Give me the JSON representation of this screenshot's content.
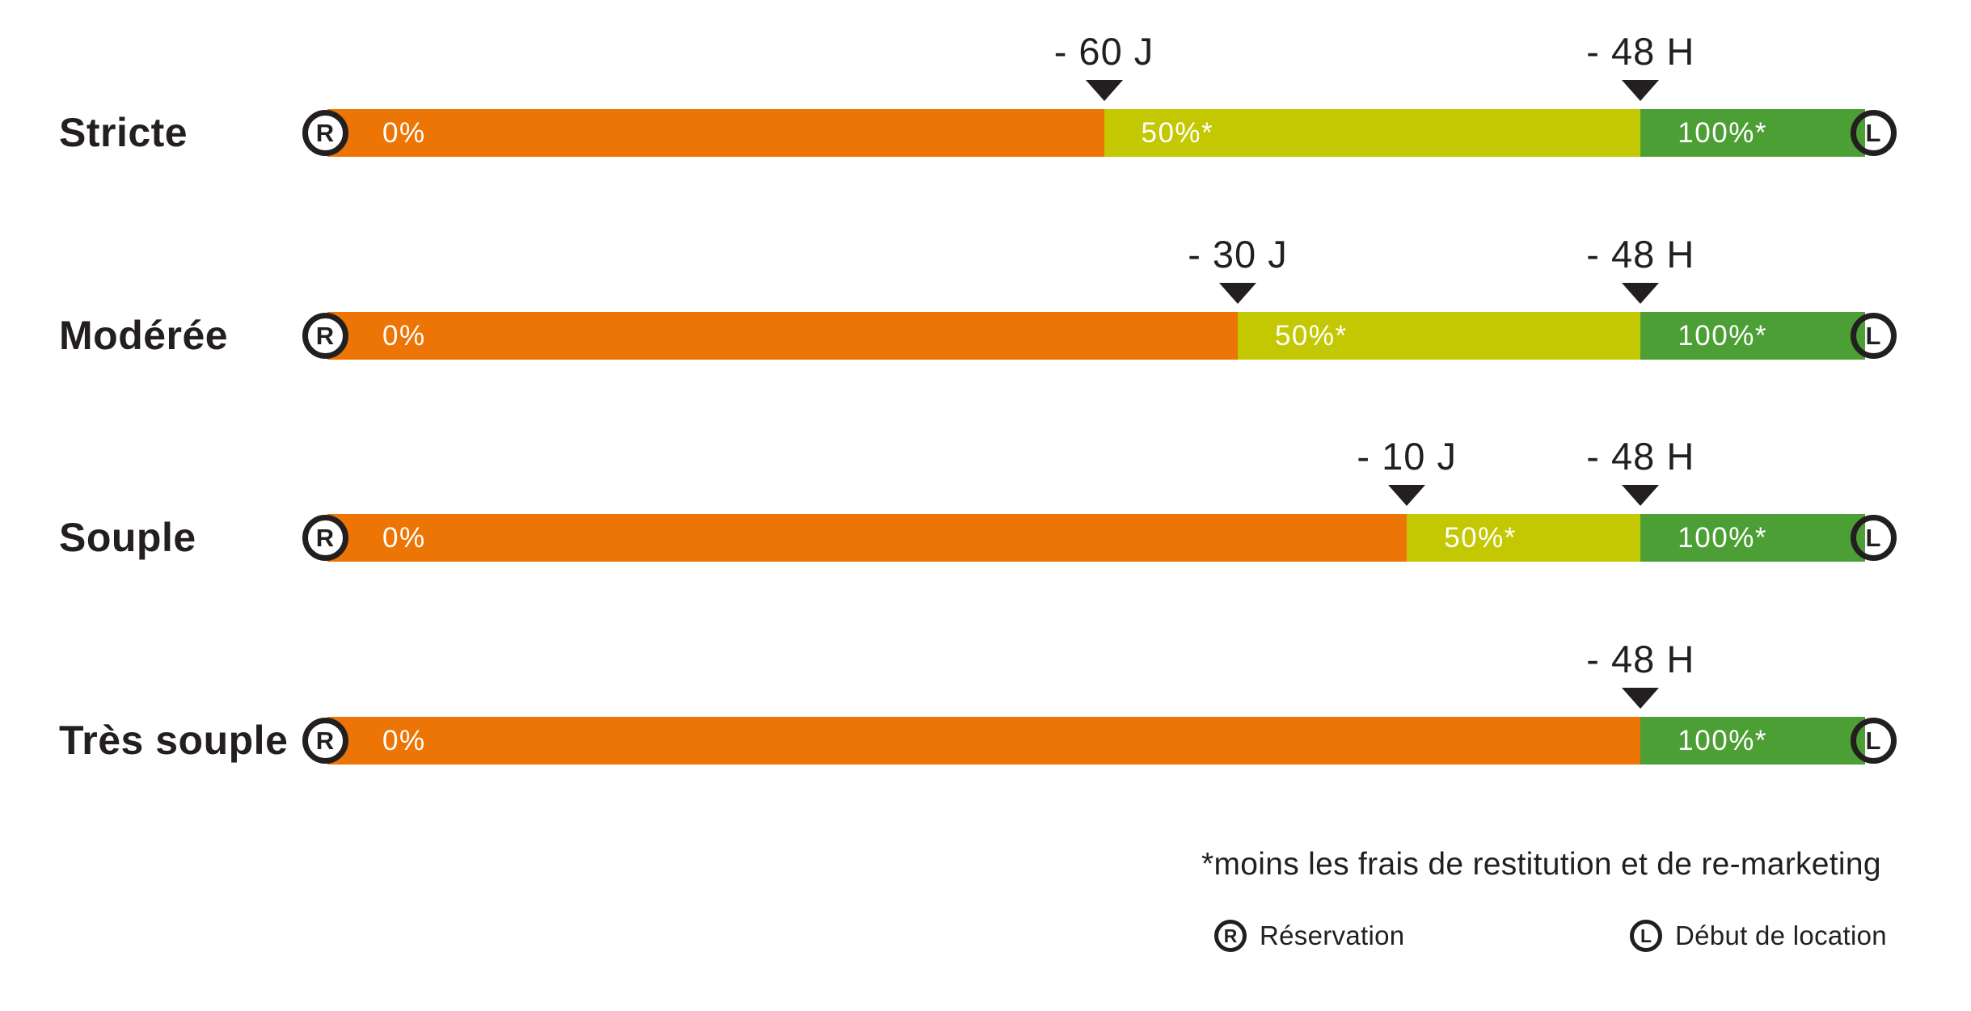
{
  "colors": {
    "orange": "#ED7505",
    "yellow": "#C3C802",
    "green": "#4C9F35",
    "ink": "#231F20",
    "segment_text": "#FFFFFF"
  },
  "bar_icons": {
    "left": "R",
    "right": "L"
  },
  "rows": [
    {
      "label": "Stricte",
      "segments": [
        {
          "color": "orange",
          "start_pct": 0,
          "label": "0%"
        },
        {
          "color": "yellow",
          "start_pct": 50.5,
          "label": "50%*"
        },
        {
          "color": "green",
          "start_pct": 85.4,
          "label": "100%*"
        }
      ],
      "markers": [
        {
          "label": "- 60 J",
          "pct": 50.5
        },
        {
          "label": "- 48 H",
          "pct": 85.4
        }
      ]
    },
    {
      "label": "Modérée",
      "segments": [
        {
          "color": "orange",
          "start_pct": 0,
          "label": "0%"
        },
        {
          "color": "yellow",
          "start_pct": 59.2,
          "label": "50%*"
        },
        {
          "color": "green",
          "start_pct": 85.4,
          "label": "100%*"
        }
      ],
      "markers": [
        {
          "label": "- 30 J",
          "pct": 59.2
        },
        {
          "label": "- 48 H",
          "pct": 85.4
        }
      ]
    },
    {
      "label": "Souple",
      "segments": [
        {
          "color": "orange",
          "start_pct": 0,
          "label": "0%"
        },
        {
          "color": "yellow",
          "start_pct": 70.2,
          "label": "50%*"
        },
        {
          "color": "green",
          "start_pct": 85.4,
          "label": "100%*"
        }
      ],
      "markers": [
        {
          "label": "- 10 J",
          "pct": 70.2
        },
        {
          "label": "- 48 H",
          "pct": 85.4
        }
      ]
    },
    {
      "label": "Très souple",
      "segments": [
        {
          "color": "orange",
          "start_pct": 0,
          "label": "0%"
        },
        {
          "color": "green",
          "start_pct": 85.4,
          "label": "100%*"
        }
      ],
      "markers": [
        {
          "label": "- 48 H",
          "pct": 85.4
        }
      ]
    }
  ],
  "footnote": "*moins les frais de restitution et de re-marketing",
  "legend": [
    {
      "icon": "R",
      "label": "Réservation"
    },
    {
      "icon": "L",
      "label": "Début de location"
    }
  ]
}
